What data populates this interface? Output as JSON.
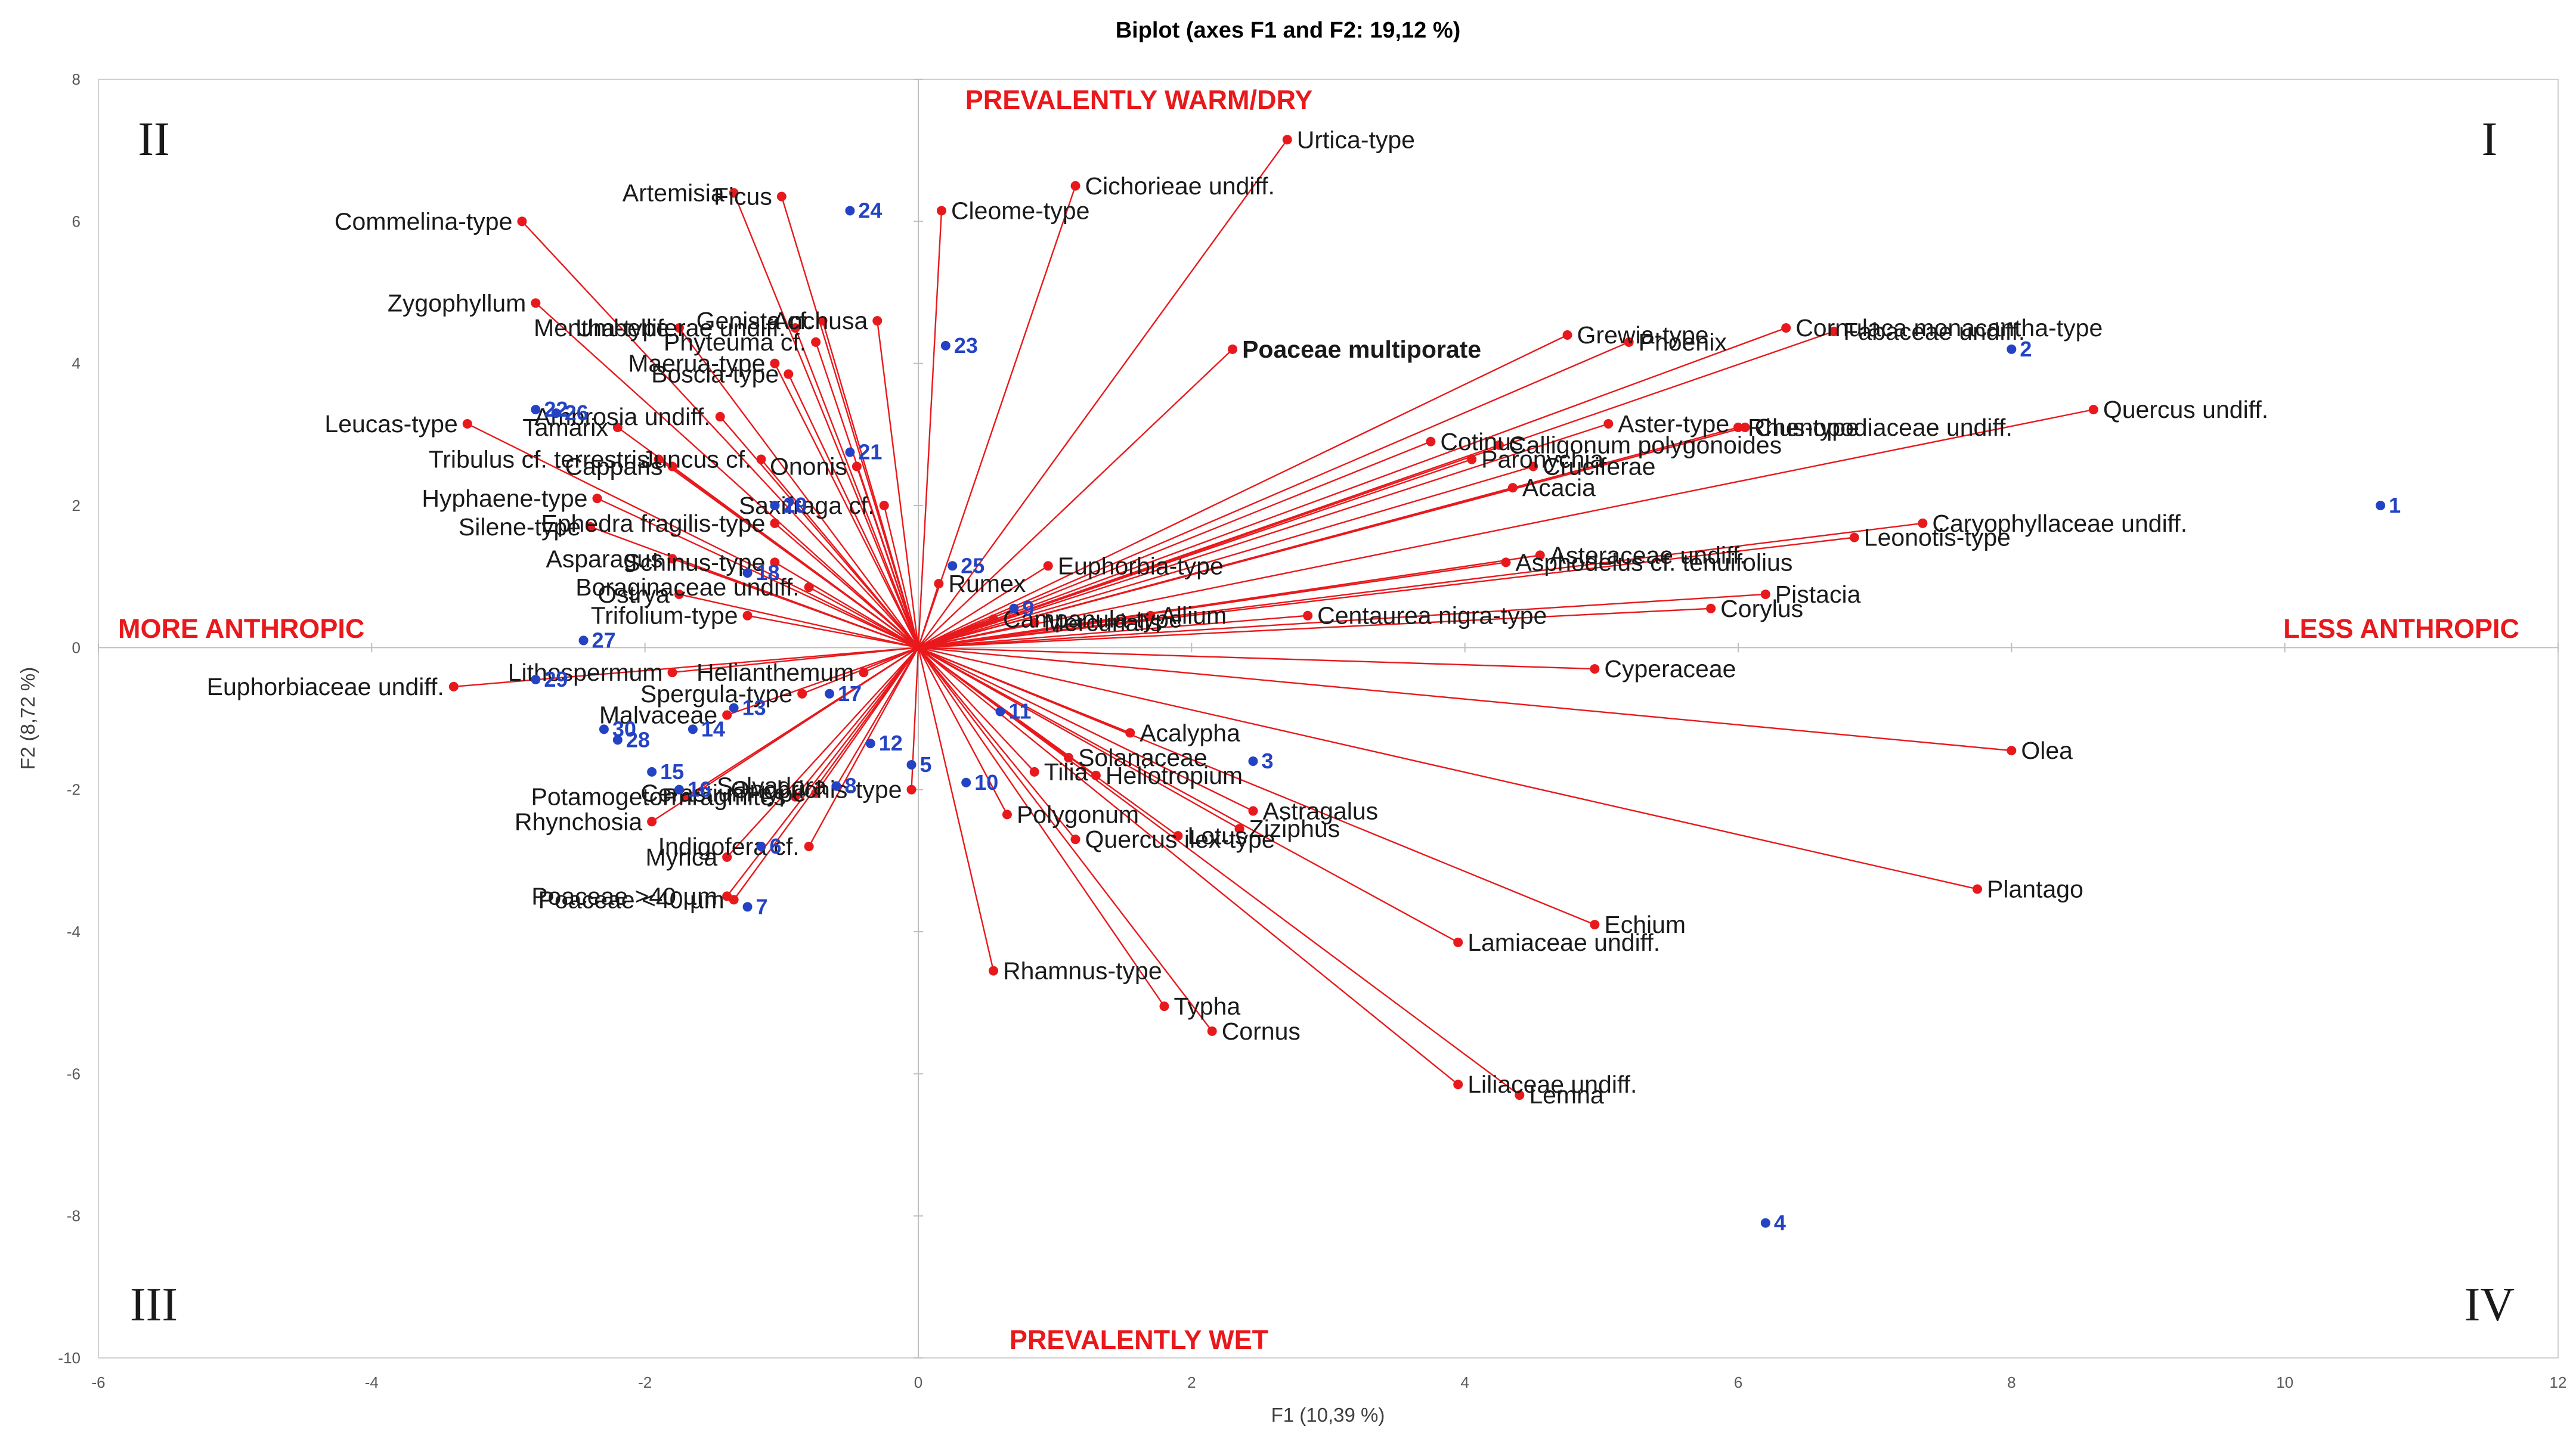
{
  "colors": {
    "vector": "#e8191c",
    "observation": "#2443c4",
    "annotation": "#e8191c",
    "grid": "#bfbfbf"
  },
  "chart_data": {
    "type": "scatter",
    "title": "Biplot (axes F1 and F2: 19,12 %)",
    "xlabel": "F1 (10,39 %)",
    "ylabel": "F2 (8,72 %)",
    "xlim": [
      -6,
      12
    ],
    "ylim": [
      -10,
      8
    ],
    "xticks": [
      "-6",
      "-4",
      "-2",
      "0",
      "2",
      "4",
      "6",
      "8",
      "10",
      "12"
    ],
    "yticks": [
      "-10",
      "-8",
      "-6",
      "-4",
      "-2",
      "0",
      "2",
      "4",
      "6",
      "8"
    ],
    "annotations": {
      "top": "PREVALENTLY WARM/DRY",
      "bottom": "PREVALENTLY WET",
      "left": "MORE ANTHROPIC",
      "right": "LESS ANTHROPIC"
    },
    "quadrants": {
      "q1": "I",
      "q2": "II",
      "q3": "III",
      "q4": "IV"
    },
    "variables": [
      {
        "name": "Urtica-type",
        "x": 2.7,
        "y": 7.15
      },
      {
        "name": "Cleome-type",
        "x": 0.17,
        "y": 6.15
      },
      {
        "name": "Cichorieae undiff.",
        "x": 1.15,
        "y": 6.5
      },
      {
        "name": "Poaceae multiporate",
        "x": 2.3,
        "y": 4.2,
        "bold": true
      },
      {
        "name": "Commelina-type",
        "x": -2.9,
        "y": 6.0
      },
      {
        "name": "Artemisia",
        "x": -1.35,
        "y": 6.4
      },
      {
        "name": "Ficus",
        "x": -1.0,
        "y": 6.35
      },
      {
        "name": "Umbelliferae undiff.",
        "x": -0.9,
        "y": 4.5
      },
      {
        "name": "Anchusa",
        "x": -0.3,
        "y": 4.6
      },
      {
        "name": "Genista cf.",
        "x": -0.7,
        "y": 4.6
      },
      {
        "name": "Zygophyllum",
        "x": -2.8,
        "y": 4.85
      },
      {
        "name": "Mentha-type",
        "x": -1.75,
        "y": 4.5
      },
      {
        "name": "Phyteuma cf.",
        "x": -0.75,
        "y": 4.3
      },
      {
        "name": "Maerua-type",
        "x": -1.05,
        "y": 4.0
      },
      {
        "name": "Boscia-type",
        "x": -0.95,
        "y": 3.85
      },
      {
        "name": "Ambrosia undiff.",
        "x": -1.45,
        "y": 3.25
      },
      {
        "name": "Tamarix",
        "x": -2.2,
        "y": 3.1
      },
      {
        "name": "Leucas-type",
        "x": -3.3,
        "y": 3.15
      },
      {
        "name": "Juncus cf.",
        "x": -1.15,
        "y": 2.65
      },
      {
        "name": "Tribulus cf. terrestris",
        "x": -1.9,
        "y": 2.65
      },
      {
        "name": "Capparis",
        "x": -1.8,
        "y": 2.55
      },
      {
        "name": "Ononis",
        "x": -0.45,
        "y": 2.55
      },
      {
        "name": "Hyphaene-type",
        "x": -2.35,
        "y": 2.1
      },
      {
        "name": "Saxifraga cf.",
        "x": -0.25,
        "y": 2.0
      },
      {
        "name": "Silene-type",
        "x": -2.4,
        "y": 1.7
      },
      {
        "name": "Ephedra fragilis-type",
        "x": -1.05,
        "y": 1.75
      },
      {
        "name": "Asparagus",
        "x": -1.8,
        "y": 1.25
      },
      {
        "name": "Schinus-type",
        "x": -1.05,
        "y": 1.2
      },
      {
        "name": "Boraginaceae undiff.",
        "x": -0.8,
        "y": 0.85
      },
      {
        "name": "Ostrya",
        "x": -1.75,
        "y": 0.75
      },
      {
        "name": "Trifolium-type",
        "x": -1.25,
        "y": 0.45
      },
      {
        "name": "Euphorbiaceae undiff.",
        "x": -3.4,
        "y": -0.55
      },
      {
        "name": "Lithospermum",
        "x": -1.8,
        "y": -0.35
      },
      {
        "name": "Spergula-type",
        "x": -0.85,
        "y": -0.65
      },
      {
        "name": "Malvaceae",
        "x": -1.4,
        "y": -0.95
      },
      {
        "name": "Helianthemum",
        "x": -0.4,
        "y": -0.35
      },
      {
        "name": "Salvadora",
        "x": -0.6,
        "y": -1.95
      },
      {
        "name": "Phragmites",
        "x": -0.9,
        "y": -2.1
      },
      {
        "name": "Potamogeton",
        "x": -1.7,
        "y": -2.1
      },
      {
        "name": "Cerastium-type",
        "x": -0.75,
        "y": -2.05
      },
      {
        "name": "Rhynchosia",
        "x": -1.95,
        "y": -2.45
      },
      {
        "name": "Myrica",
        "x": -1.4,
        "y": -2.95
      },
      {
        "name": "Indigofera cf.",
        "x": -0.8,
        "y": -2.8
      },
      {
        "name": "Onobrichis-type",
        "x": -0.05,
        "y": -2.0
      },
      {
        "name": "Poaceae >40 µm",
        "x": -1.4,
        "y": -3.5
      },
      {
        "name": "Poaceae <40 µm",
        "x": -1.35,
        "y": -3.55
      },
      {
        "name": "Rumex",
        "x": 0.15,
        "y": 0.9
      },
      {
        "name": "Euphorbia-type",
        "x": 0.95,
        "y": 1.15
      },
      {
        "name": "Campanula-type",
        "x": 0.55,
        "y": 0.4
      },
      {
        "name": "Mercurialis",
        "x": 0.85,
        "y": 0.35
      },
      {
        "name": "Allium",
        "x": 1.7,
        "y": 0.45
      },
      {
        "name": "Centaurea nigra-type",
        "x": 2.85,
        "y": 0.45
      },
      {
        "name": "Cotinus",
        "x": 3.75,
        "y": 2.9
      },
      {
        "name": "Grewia-type",
        "x": 4.75,
        "y": 4.4
      },
      {
        "name": "Phoenix",
        "x": 5.2,
        "y": 4.3
      },
      {
        "name": "Paronychia",
        "x": 4.05,
        "y": 2.65
      },
      {
        "name": "Calligonum polygonoides",
        "x": 4.25,
        "y": 2.85
      },
      {
        "name": "Cornulaca monacantha-type",
        "x": 6.35,
        "y": 4.5
      },
      {
        "name": "Fabaceae undiff.",
        "x": 6.7,
        "y": 4.45
      },
      {
        "name": "Cruciferae",
        "x": 4.5,
        "y": 2.55
      },
      {
        "name": "Acacia",
        "x": 4.35,
        "y": 2.25
      },
      {
        "name": "Aster-type",
        "x": 5.05,
        "y": 3.15
      },
      {
        "name": "Rhus-type",
        "x": 6.0,
        "y": 3.1
      },
      {
        "name": "Chenopodiaceae undiff.",
        "x": 6.05,
        "y": 3.1
      },
      {
        "name": "Quercus undiff.",
        "x": 8.6,
        "y": 3.35
      },
      {
        "name": "Caryophyllaceae undiff.",
        "x": 7.35,
        "y": 1.75
      },
      {
        "name": "Leonotis-type",
        "x": 6.85,
        "y": 1.55
      },
      {
        "name": "Asteraceae undiff.",
        "x": 4.55,
        "y": 1.3
      },
      {
        "name": "Asphodelus cf. tenuifolius",
        "x": 4.3,
        "y": 1.2
      },
      {
        "name": "Pistacia",
        "x": 6.2,
        "y": 0.75
      },
      {
        "name": "Corylus",
        "x": 5.8,
        "y": 0.55
      },
      {
        "name": "Cyperaceae",
        "x": 4.95,
        "y": -0.3
      },
      {
        "name": "Olea",
        "x": 8.0,
        "y": -1.45
      },
      {
        "name": "Plantago",
        "x": 7.75,
        "y": -3.4
      },
      {
        "name": "Acalypha",
        "x": 1.55,
        "y": -1.2
      },
      {
        "name": "Tilia",
        "x": 0.85,
        "y": -1.75
      },
      {
        "name": "Polygonum",
        "x": 0.65,
        "y": -2.35
      },
      {
        "name": "Ziziphus",
        "x": 2.35,
        "y": -2.55
      },
      {
        "name": "Quercus ilex-type",
        "x": 1.15,
        "y": -2.7
      },
      {
        "name": "Lotus",
        "x": 1.9,
        "y": -2.65
      },
      {
        "name": "Lamiaceae undiff.",
        "x": 3.95,
        "y": -4.15
      },
      {
        "name": "Echium",
        "x": 4.95,
        "y": -3.9
      },
      {
        "name": "Liliaceae undiff.",
        "x": 3.95,
        "y": -6.15
      },
      {
        "name": "Rhamnus-type",
        "x": 0.55,
        "y": -4.55
      },
      {
        "name": "Typha",
        "x": 1.8,
        "y": -5.05
      },
      {
        "name": "Cornus",
        "x": 2.15,
        "y": -5.4
      },
      {
        "name": "Lemna",
        "x": 4.4,
        "y": -6.3
      },
      {
        "name": "Astragalus",
        "x": 2.45,
        "y": -2.3
      },
      {
        "name": "Heliotropium",
        "x": 1.3,
        "y": -1.8
      },
      {
        "name": "Solanaceae",
        "x": 1.1,
        "y": -1.55
      }
    ],
    "observations": [
      {
        "label": "1",
        "x": 10.7,
        "y": 2.0
      },
      {
        "label": "2",
        "x": 8.0,
        "y": 4.2
      },
      {
        "label": "3",
        "x": 2.45,
        "y": -1.6
      },
      {
        "label": "4",
        "x": 6.2,
        "y": -8.1
      },
      {
        "label": "5",
        "x": -0.05,
        "y": -1.65
      },
      {
        "label": "6",
        "x": -1.15,
        "y": -2.8
      },
      {
        "label": "7",
        "x": -1.25,
        "y": -3.65
      },
      {
        "label": "8",
        "x": -0.6,
        "y": -1.95
      },
      {
        "label": "9",
        "x": 0.7,
        "y": 0.55
      },
      {
        "label": "10",
        "x": 0.35,
        "y": -1.9
      },
      {
        "label": "11",
        "x": 0.6,
        "y": -0.9
      },
      {
        "label": "12",
        "x": -0.35,
        "y": -1.35
      },
      {
        "label": "13",
        "x": -1.35,
        "y": -0.85
      },
      {
        "label": "14",
        "x": -1.65,
        "y": -1.15
      },
      {
        "label": "15",
        "x": -1.95,
        "y": -1.75
      },
      {
        "label": "16",
        "x": -1.75,
        "y": -2.0
      },
      {
        "label": "17",
        "x": -0.65,
        "y": -0.65
      },
      {
        "label": "18",
        "x": -1.25,
        "y": 1.05
      },
      {
        "label": "19",
        "x": -1.05,
        "y": 2.0
      },
      {
        "label": "20",
        "x": -1.05,
        "y": 2.0
      },
      {
        "label": "21",
        "x": -0.5,
        "y": 2.75
      },
      {
        "label": "22",
        "x": -2.8,
        "y": 3.35
      },
      {
        "label": "23",
        "x": 0.2,
        "y": 4.25
      },
      {
        "label": "24",
        "x": -0.5,
        "y": 6.15
      },
      {
        "label": "25",
        "x": 0.25,
        "y": 1.15
      },
      {
        "label": "26",
        "x": -2.65,
        "y": 3.3
      },
      {
        "label": "27",
        "x": -2.45,
        "y": 0.1
      },
      {
        "label": "28",
        "x": -2.2,
        "y": -1.3
      },
      {
        "label": "29",
        "x": -2.8,
        "y": -0.45
      },
      {
        "label": "30",
        "x": -2.3,
        "y": -1.15
      }
    ]
  }
}
